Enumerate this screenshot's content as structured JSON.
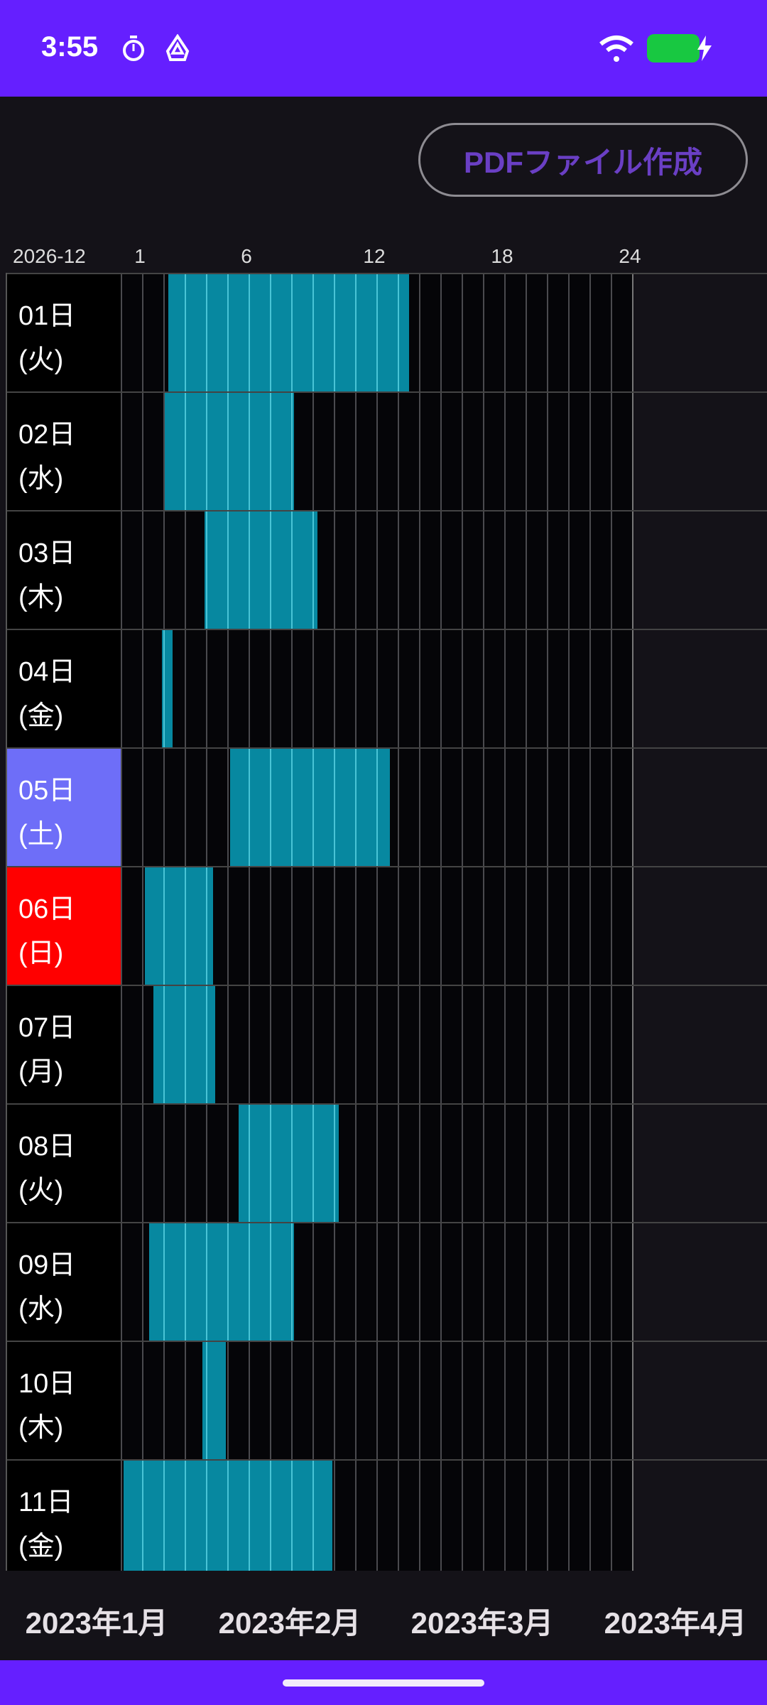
{
  "status_bar": {
    "time": "3:55",
    "icons": [
      "stopwatch-icon",
      "drive-icon",
      "wifi-icon",
      "battery-charging-icon"
    ],
    "battery_color": "#18c841",
    "bg_color": "#651fff"
  },
  "toolbar": {
    "pdf_button_label": "PDFファイル作成"
  },
  "header": {
    "month": "2026-12",
    "hour_labels": [
      "1",
      "6",
      "12",
      "18",
      "24"
    ]
  },
  "colors": {
    "bar": "#0788a0",
    "saturday": "#6e6ef8",
    "sunday": "#ff0000",
    "weekday": "#000000"
  },
  "days": [
    {
      "day": "01日",
      "weekday": "(火)",
      "type": "weekday",
      "start": 2.2,
      "end": 13.5
    },
    {
      "day": "02日",
      "weekday": "(水)",
      "type": "weekday",
      "start": 2.0,
      "end": 8.1
    },
    {
      "day": "03日",
      "weekday": "(木)",
      "type": "weekday",
      "start": 3.9,
      "end": 9.2
    },
    {
      "day": "04日",
      "weekday": "(金)",
      "type": "weekday",
      "start": 1.9,
      "end": 2.4
    },
    {
      "day": "05日",
      "weekday": "(土)",
      "type": "saturday",
      "start": 5.1,
      "end": 12.6
    },
    {
      "day": "06日",
      "weekday": "(日)",
      "type": "sunday",
      "start": 1.1,
      "end": 4.3
    },
    {
      "day": "07日",
      "weekday": "(月)",
      "type": "weekday",
      "start": 1.5,
      "end": 4.4
    },
    {
      "day": "08日",
      "weekday": "(火)",
      "type": "weekday",
      "start": 5.5,
      "end": 10.2
    },
    {
      "day": "09日",
      "weekday": "(水)",
      "type": "weekday",
      "start": 1.3,
      "end": 8.1
    },
    {
      "day": "10日",
      "weekday": "(木)",
      "type": "weekday",
      "start": 3.8,
      "end": 4.9
    },
    {
      "day": "11日",
      "weekday": "(金)",
      "type": "weekday",
      "start": 0.1,
      "end": 9.9
    }
  ],
  "month_tabs": [
    "2023年1月",
    "2023年2月",
    "2023年3月",
    "2023年4月"
  ]
}
